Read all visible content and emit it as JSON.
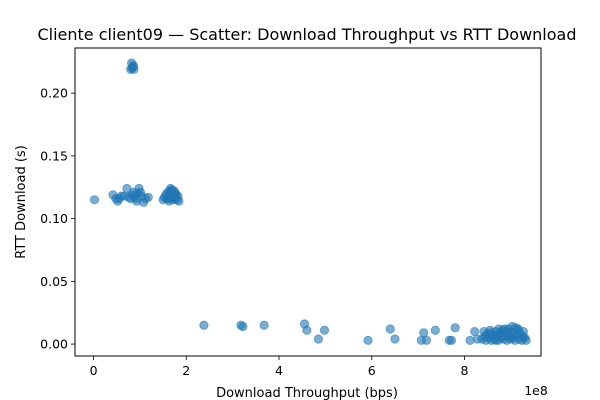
{
  "chart_data": {
    "type": "scatter",
    "title": "Cliente client09 — Scatter: Download Throughput vs RTT Download",
    "xlabel": "Download Throughput (bps)",
    "ylabel": "RTT Download (s)",
    "x_offset_label": "1e8",
    "xlim": [
      -40000000.0,
      965000000.0
    ],
    "ylim": [
      -0.0095,
      0.236
    ],
    "x_ticks": [
      0,
      200000000.0,
      400000000.0,
      600000000.0,
      800000000.0
    ],
    "x_tick_labels": [
      "0",
      "2",
      "4",
      "6",
      "8"
    ],
    "y_ticks": [
      0.0,
      0.05,
      0.1,
      0.15,
      0.2
    ],
    "y_tick_labels": [
      "0.00",
      "0.05",
      "0.10",
      "0.15",
      "0.20"
    ],
    "grid": false,
    "marker_color": "#1f77b4",
    "marker_alpha": 0.6,
    "points": [
      {
        "x": 82000000,
        "y": 0.224
      },
      {
        "x": 85000000,
        "y": 0.221
      },
      {
        "x": 80000000,
        "y": 0.219
      },
      {
        "x": 87000000,
        "y": 0.219
      },
      {
        "x": 83000000,
        "y": 0.22
      },
      {
        "x": 86000000,
        "y": 0.222
      },
      {
        "x": 2000000,
        "y": 0.115
      },
      {
        "x": 42000000,
        "y": 0.119
      },
      {
        "x": 48000000,
        "y": 0.116
      },
      {
        "x": 52000000,
        "y": 0.114
      },
      {
        "x": 55000000,
        "y": 0.116
      },
      {
        "x": 60000000,
        "y": 0.118
      },
      {
        "x": 66000000,
        "y": 0.118
      },
      {
        "x": 72000000,
        "y": 0.124
      },
      {
        "x": 76000000,
        "y": 0.117
      },
      {
        "x": 80000000,
        "y": 0.116
      },
      {
        "x": 83000000,
        "y": 0.119
      },
      {
        "x": 86000000,
        "y": 0.121
      },
      {
        "x": 89000000,
        "y": 0.118
      },
      {
        "x": 92000000,
        "y": 0.116
      },
      {
        "x": 95000000,
        "y": 0.12
      },
      {
        "x": 98000000,
        "y": 0.124
      },
      {
        "x": 101000000,
        "y": 0.121
      },
      {
        "x": 104000000,
        "y": 0.118
      },
      {
        "x": 108000000,
        "y": 0.113
      },
      {
        "x": 112000000,
        "y": 0.116
      },
      {
        "x": 118000000,
        "y": 0.117
      },
      {
        "x": 93000000,
        "y": 0.114
      },
      {
        "x": 150000000,
        "y": 0.115
      },
      {
        "x": 153000000,
        "y": 0.117
      },
      {
        "x": 156000000,
        "y": 0.119
      },
      {
        "x": 158000000,
        "y": 0.116
      },
      {
        "x": 160000000,
        "y": 0.121
      },
      {
        "x": 162000000,
        "y": 0.118
      },
      {
        "x": 163000000,
        "y": 0.114
      },
      {
        "x": 165000000,
        "y": 0.122
      },
      {
        "x": 166000000,
        "y": 0.124
      },
      {
        "x": 167000000,
        "y": 0.12
      },
      {
        "x": 168000000,
        "y": 0.117
      },
      {
        "x": 169000000,
        "y": 0.123
      },
      {
        "x": 170000000,
        "y": 0.119
      },
      {
        "x": 171000000,
        "y": 0.115
      },
      {
        "x": 172000000,
        "y": 0.121
      },
      {
        "x": 173000000,
        "y": 0.118
      },
      {
        "x": 174000000,
        "y": 0.122
      },
      {
        "x": 175000000,
        "y": 0.116
      },
      {
        "x": 176000000,
        "y": 0.119
      },
      {
        "x": 178000000,
        "y": 0.117
      },
      {
        "x": 180000000,
        "y": 0.115
      },
      {
        "x": 182000000,
        "y": 0.118
      },
      {
        "x": 184000000,
        "y": 0.114
      },
      {
        "x": 164000000,
        "y": 0.119
      },
      {
        "x": 161000000,
        "y": 0.116
      },
      {
        "x": 177000000,
        "y": 0.12
      },
      {
        "x": 238000000,
        "y": 0.015
      },
      {
        "x": 318000000,
        "y": 0.015
      },
      {
        "x": 322000000,
        "y": 0.014
      },
      {
        "x": 368000000,
        "y": 0.015
      },
      {
        "x": 455000000,
        "y": 0.016
      },
      {
        "x": 460000000,
        "y": 0.011
      },
      {
        "x": 485000000,
        "y": 0.004
      },
      {
        "x": 498000000,
        "y": 0.011
      },
      {
        "x": 592000000,
        "y": 0.003
      },
      {
        "x": 640000000,
        "y": 0.012
      },
      {
        "x": 650000000,
        "y": 0.004
      },
      {
        "x": 707000000,
        "y": 0.003
      },
      {
        "x": 712000000,
        "y": 0.009
      },
      {
        "x": 718000000,
        "y": 0.003
      },
      {
        "x": 737000000,
        "y": 0.011
      },
      {
        "x": 767000000,
        "y": 0.003
      },
      {
        "x": 772000000,
        "y": 0.003
      },
      {
        "x": 780000000,
        "y": 0.013
      },
      {
        "x": 812000000,
        "y": 0.003
      },
      {
        "x": 822000000,
        "y": 0.01
      },
      {
        "x": 828000000,
        "y": 0.004
      },
      {
        "x": 838000000,
        "y": 0.004
      },
      {
        "x": 842000000,
        "y": 0.01
      },
      {
        "x": 846000000,
        "y": 0.003
      },
      {
        "x": 849000000,
        "y": 0.008
      },
      {
        "x": 852000000,
        "y": 0.005
      },
      {
        "x": 855000000,
        "y": 0.011
      },
      {
        "x": 858000000,
        "y": 0.003
      },
      {
        "x": 861000000,
        "y": 0.007
      },
      {
        "x": 864000000,
        "y": 0.004
      },
      {
        "x": 867000000,
        "y": 0.01
      },
      {
        "x": 870000000,
        "y": 0.006
      },
      {
        "x": 873000000,
        "y": 0.003
      },
      {
        "x": 876000000,
        "y": 0.009
      },
      {
        "x": 879000000,
        "y": 0.005
      },
      {
        "x": 882000000,
        "y": 0.011
      },
      {
        "x": 885000000,
        "y": 0.004
      },
      {
        "x": 888000000,
        "y": 0.008
      },
      {
        "x": 891000000,
        "y": 0.003
      },
      {
        "x": 894000000,
        "y": 0.012
      },
      {
        "x": 897000000,
        "y": 0.006
      },
      {
        "x": 900000000,
        "y": 0.004
      },
      {
        "x": 903000000,
        "y": 0.014
      },
      {
        "x": 906000000,
        "y": 0.009
      },
      {
        "x": 909000000,
        "y": 0.003
      },
      {
        "x": 912000000,
        "y": 0.007
      },
      {
        "x": 915000000,
        "y": 0.011
      },
      {
        "x": 918000000,
        "y": 0.004
      },
      {
        "x": 921000000,
        "y": 0.008
      },
      {
        "x": 924000000,
        "y": 0.003
      },
      {
        "x": 927000000,
        "y": 0.01
      },
      {
        "x": 930000000,
        "y": 0.005
      },
      {
        "x": 933000000,
        "y": 0.003
      },
      {
        "x": 844000000,
        "y": 0.006
      },
      {
        "x": 856000000,
        "y": 0.009
      },
      {
        "x": 868000000,
        "y": 0.003
      },
      {
        "x": 880000000,
        "y": 0.007
      },
      {
        "x": 892000000,
        "y": 0.01
      },
      {
        "x": 904000000,
        "y": 0.005
      },
      {
        "x": 916000000,
        "y": 0.012
      },
      {
        "x": 926000000,
        "y": 0.006
      },
      {
        "x": 898000000,
        "y": 0.009
      },
      {
        "x": 886000000,
        "y": 0.012
      },
      {
        "x": 910000000,
        "y": 0.013
      },
      {
        "x": 874000000,
        "y": 0.012
      }
    ]
  }
}
